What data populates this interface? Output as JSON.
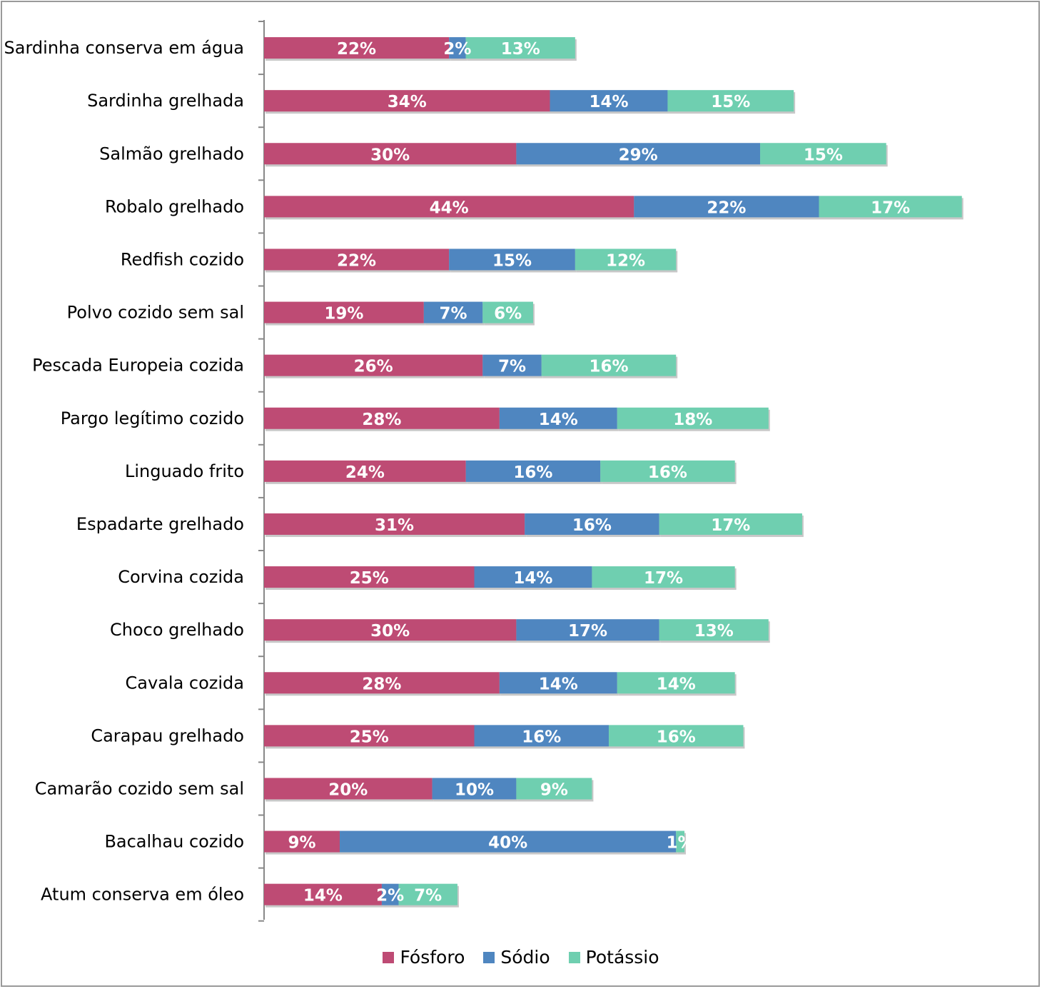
{
  "chart_data": {
    "type": "bar",
    "orientation": "horizontal",
    "stacked": true,
    "categories": [
      "Sardinha conserva em água",
      "Sardinha  grelhada",
      "Salmão grelhado",
      "Robalo grelhado",
      "Redfish cozido",
      "Polvo cozido sem sal",
      "Pescada Europeia cozida",
      "Pargo legítimo cozido",
      "Linguado frito",
      "Espadarte grelhado",
      "Corvina cozida",
      "Choco grelhado",
      "Cavala cozida",
      "Carapau grelhado",
      "Camarão cozido sem sal",
      "Bacalhau cozido",
      "Atum conserva em óleo"
    ],
    "series": [
      {
        "name": "Fósforo",
        "color": "#BE4B74",
        "values": [
          22,
          34,
          30,
          44,
          22,
          19,
          26,
          28,
          24,
          31,
          25,
          30,
          28,
          25,
          20,
          9,
          14
        ],
        "labels": [
          "22%",
          "34%",
          "30%",
          "44%",
          "22%",
          "19%",
          "26%",
          "28%",
          "24%",
          "31%",
          "25%",
          "30%",
          "28%",
          "25%",
          "20%",
          "9%",
          "14%"
        ]
      },
      {
        "name": "Sódio",
        "color": "#4F86C0",
        "values": [
          2,
          14,
          29,
          22,
          15,
          7,
          7,
          14,
          16,
          16,
          14,
          17,
          14,
          16,
          10,
          40,
          2
        ],
        "labels": [
          "2%",
          "14%",
          "29%",
          "22%",
          "15%",
          "7%",
          "7%",
          "14%",
          "16%",
          "16%",
          "14%",
          "17%",
          "14%",
          "16%",
          "10%",
          "40%",
          "2%"
        ]
      },
      {
        "name": "Potássio",
        "color": "#6FCFB0",
        "values": [
          13,
          15,
          15,
          17,
          12,
          6,
          16,
          18,
          16,
          17,
          17,
          13,
          14,
          16,
          9,
          1,
          7
        ],
        "labels": [
          "13%",
          "15%",
          "15%",
          "17%",
          "12%",
          "6%",
          "16%",
          "18%",
          "16%",
          "17%",
          "17%",
          "13%",
          "14%",
          "16%",
          "9%",
          "1%",
          "7%"
        ]
      }
    ],
    "legend_position": "bottom",
    "grid": false,
    "xlim": [
      0,
      100
    ]
  }
}
